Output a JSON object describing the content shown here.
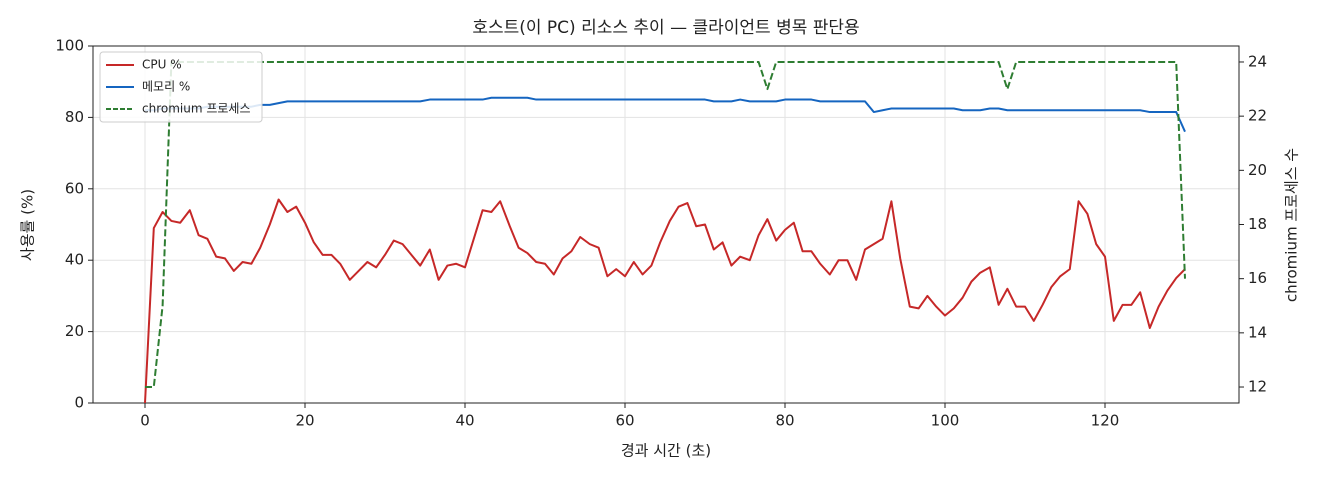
{
  "chart_data": {
    "type": "line",
    "title": "호스트(이 PC) 리소스 추이 — 클라이언트 병목 판단용",
    "xlabel": "경과 시간 (초)",
    "ylabel": "사용률 (%)",
    "y2label": "chromium 프로세스 수",
    "x": [
      0,
      1.1,
      2.2,
      3.3,
      4.4,
      5.6,
      6.7,
      7.8,
      8.9,
      10,
      11.1,
      12.2,
      13.3,
      14.4,
      15.6,
      16.7,
      17.8,
      18.9,
      20,
      21.1,
      22.2,
      23.3,
      24.4,
      25.6,
      26.7,
      27.8,
      28.9,
      30,
      31.1,
      32.2,
      33.3,
      34.4,
      35.6,
      36.7,
      37.8,
      38.9,
      40,
      41.1,
      42.2,
      43.3,
      44.4,
      45.6,
      46.7,
      47.8,
      48.9,
      50,
      51.1,
      52.2,
      53.3,
      54.4,
      55.6,
      56.7,
      57.8,
      58.9,
      60,
      61.1,
      62.2,
      63.3,
      64.4,
      65.6,
      66.7,
      67.8,
      68.9,
      70,
      71.1,
      72.2,
      73.3,
      74.4,
      75.6,
      76.7,
      77.8,
      78.9,
      80,
      81.1,
      82.2,
      83.3,
      84.4,
      85.6,
      86.7,
      87.8,
      88.9,
      90,
      91.1,
      92.2,
      93.3,
      94.4,
      95.6,
      96.7,
      97.8,
      98.9,
      100,
      101.1,
      102.2,
      103.3,
      104.4,
      105.6,
      106.7,
      107.8,
      108.9,
      110,
      111.1,
      112.2,
      113.3,
      114.4,
      115.6,
      116.7,
      117.8,
      118.9,
      120,
      121.1,
      122.2,
      123.3,
      124.4,
      125.6,
      126.7,
      127.8,
      128.9,
      130
    ],
    "series": [
      {
        "name": "CPU %",
        "color": "#c62828",
        "dashed": false,
        "values": [
          0,
          49,
          53.5,
          51,
          50.5,
          54,
          47,
          46,
          41,
          40.5,
          37,
          39.5,
          39,
          43.5,
          50,
          57,
          53.5,
          55,
          50.5,
          45,
          41.5,
          41.5,
          39,
          34.5,
          37,
          39.5,
          38,
          41.5,
          45.5,
          44.5,
          41.5,
          38.5,
          43,
          34.5,
          38.5,
          39,
          38,
          46,
          54,
          53.5,
          56.5,
          49.5,
          43.5,
          42,
          39.5,
          39,
          36,
          40.5,
          42.5,
          46.5,
          44.5,
          43.5,
          35.5,
          37.5,
          35.5,
          39.5,
          36,
          38.5,
          45,
          51,
          55,
          56,
          49.5,
          50,
          43,
          45,
          38.5,
          41,
          40,
          47,
          51.5,
          45.5,
          48.5,
          50.5,
          42.5,
          42.5,
          39,
          36,
          40,
          40,
          34.5,
          43,
          44.5,
          46,
          56.5,
          40.5,
          27,
          26.5,
          30,
          27,
          24.5,
          26.5,
          29.5,
          34,
          36.5,
          38,
          27.5,
          32,
          27,
          27,
          23,
          27.5,
          32.5,
          35.5,
          37.5,
          56.5,
          53,
          44.5,
          41,
          23,
          27.5,
          27.5,
          31,
          21,
          27,
          31.5,
          35,
          37.5
        ]
      },
      {
        "name": "메모리 %",
        "color": "#1565c0",
        "dashed": false,
        "values": [
          82,
          82,
          82.5,
          82.5,
          82.5,
          82.5,
          82.5,
          83,
          83,
          83,
          83,
          83,
          83,
          83.5,
          83.5,
          84,
          84.5,
          84.5,
          84.5,
          84.5,
          84.5,
          84.5,
          84.5,
          84.5,
          84.5,
          84.5,
          84.5,
          84.5,
          84.5,
          84.5,
          84.5,
          84.5,
          85,
          85,
          85,
          85,
          85,
          85,
          85,
          85.5,
          85.5,
          85.5,
          85.5,
          85.5,
          85,
          85,
          85,
          85,
          85,
          85,
          85,
          85,
          85,
          85,
          85,
          85,
          85,
          85,
          85,
          85,
          85,
          85,
          85,
          85,
          84.5,
          84.5,
          84.5,
          85,
          84.5,
          84.5,
          84.5,
          84.5,
          85,
          85,
          85,
          85,
          84.5,
          84.5,
          84.5,
          84.5,
          84.5,
          84.5,
          81.5,
          82,
          82.5,
          82.5,
          82.5,
          82.5,
          82.5,
          82.5,
          82.5,
          82.5,
          82,
          82,
          82,
          82.5,
          82.5,
          82,
          82,
          82,
          82,
          82,
          82,
          82,
          82,
          82,
          82,
          82,
          82,
          82,
          82,
          82,
          82,
          81.5,
          81.5,
          81.5,
          81.5,
          76
        ]
      },
      {
        "name": "chromium 프로세스",
        "color": "#2e7d32",
        "dashed": true,
        "axis": "y2",
        "values": [
          12,
          12,
          15,
          24,
          24,
          24,
          24,
          24,
          24,
          24,
          24,
          24,
          24,
          24,
          24,
          24,
          24,
          24,
          24,
          24,
          24,
          24,
          24,
          24,
          24,
          24,
          24,
          24,
          24,
          24,
          24,
          24,
          24,
          24,
          24,
          24,
          24,
          24,
          24,
          24,
          24,
          24,
          24,
          24,
          24,
          24,
          24,
          24,
          24,
          24,
          24,
          24,
          24,
          24,
          24,
          24,
          24,
          24,
          24,
          24,
          24,
          24,
          24,
          24,
          24,
          24,
          24,
          24,
          24,
          24,
          23,
          24,
          24,
          24,
          24,
          24,
          24,
          24,
          24,
          24,
          24,
          24,
          24,
          24,
          24,
          24,
          24,
          24,
          24,
          24,
          24,
          24,
          24,
          24,
          24,
          24,
          24,
          23,
          24,
          24,
          24,
          24,
          24,
          24,
          24,
          24,
          24,
          24,
          24,
          24,
          24,
          24,
          24,
          24,
          24,
          24,
          24,
          16
        ]
      }
    ],
    "xlim": [
      -6.5,
      136.75
    ],
    "xticks": [
      0,
      20,
      40,
      60,
      80,
      100,
      120
    ],
    "ylim": [
      0,
      100
    ],
    "yticks": [
      0,
      20,
      40,
      60,
      80,
      100
    ],
    "y2lim": [
      11.41,
      24.59
    ],
    "y2ticks": [
      12,
      14,
      16,
      18,
      20,
      22,
      24
    ],
    "grid": true,
    "legend": "upper-left"
  }
}
